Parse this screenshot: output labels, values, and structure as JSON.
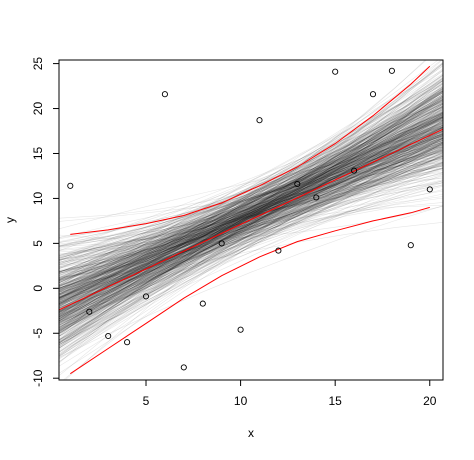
{
  "chart_data": {
    "type": "scatter",
    "title": "",
    "xlabel": "x",
    "ylabel": "y",
    "xlim": [
      0.4,
      20.7
    ],
    "ylim": [
      -10.2,
      25.4
    ],
    "xticks": [
      5,
      10,
      15,
      20
    ],
    "yticks": [
      -10,
      -5,
      0,
      5,
      10,
      15,
      20,
      25
    ],
    "xtick_labels": [
      "5",
      "10",
      "15",
      "20"
    ],
    "ytick_labels": [
      "-10",
      "-5",
      "0",
      "5",
      "10",
      "15",
      "20",
      "25"
    ],
    "grid": false,
    "legend": "none",
    "points": [
      {
        "x": 1,
        "y": 11.4
      },
      {
        "x": 2,
        "y": -2.6
      },
      {
        "x": 3,
        "y": -5.3
      },
      {
        "x": 4,
        "y": -6.0
      },
      {
        "x": 5,
        "y": -0.9
      },
      {
        "x": 6,
        "y": 21.6
      },
      {
        "x": 7,
        "y": -8.8
      },
      {
        "x": 8,
        "y": -1.7
      },
      {
        "x": 9,
        "y": 5.0
      },
      {
        "x": 10,
        "y": -4.6
      },
      {
        "x": 11,
        "y": 18.7
      },
      {
        "x": 12,
        "y": 4.2
      },
      {
        "x": 13,
        "y": 11.6
      },
      {
        "x": 14,
        "y": 10.1
      },
      {
        "x": 15,
        "y": 24.1
      },
      {
        "x": 16,
        "y": 13.1
      },
      {
        "x": 17,
        "y": 21.6
      },
      {
        "x": 18,
        "y": 24.2
      },
      {
        "x": 19,
        "y": 4.8
      },
      {
        "x": 20,
        "y": 11.0
      }
    ],
    "red_lines": [
      {
        "series": "fit",
        "x": [
          0.4,
          20.7
        ],
        "y": [
          -2.4,
          17.7
        ]
      },
      {
        "series": "upper band",
        "x": [
          1,
          3,
          5,
          7,
          9,
          11,
          13,
          15,
          17,
          19,
          20
        ],
        "y": [
          6.0,
          6.5,
          7.2,
          8.1,
          9.5,
          11.4,
          13.5,
          16.1,
          19.2,
          22.7,
          24.7
        ]
      },
      {
        "series": "lower band",
        "x": [
          1,
          3,
          5,
          7,
          9,
          11,
          13,
          15,
          17,
          19,
          20
        ],
        "y": [
          -9.5,
          -6.7,
          -3.9,
          -1.1,
          1.4,
          3.5,
          5.2,
          6.4,
          7.5,
          8.4,
          9.0
        ]
      }
    ],
    "bootstrap_lines": {
      "count": 600,
      "intercept_center": -2.0,
      "intercept_spread": 3.4,
      "slope_center": 0.97,
      "slope_spread": 0.24,
      "opacity": 0.1
    },
    "colors": {
      "points": "#000000",
      "fit_lines": "#ff0000",
      "bootstrap_lines": "#000000",
      "axes": "#000000"
    }
  }
}
